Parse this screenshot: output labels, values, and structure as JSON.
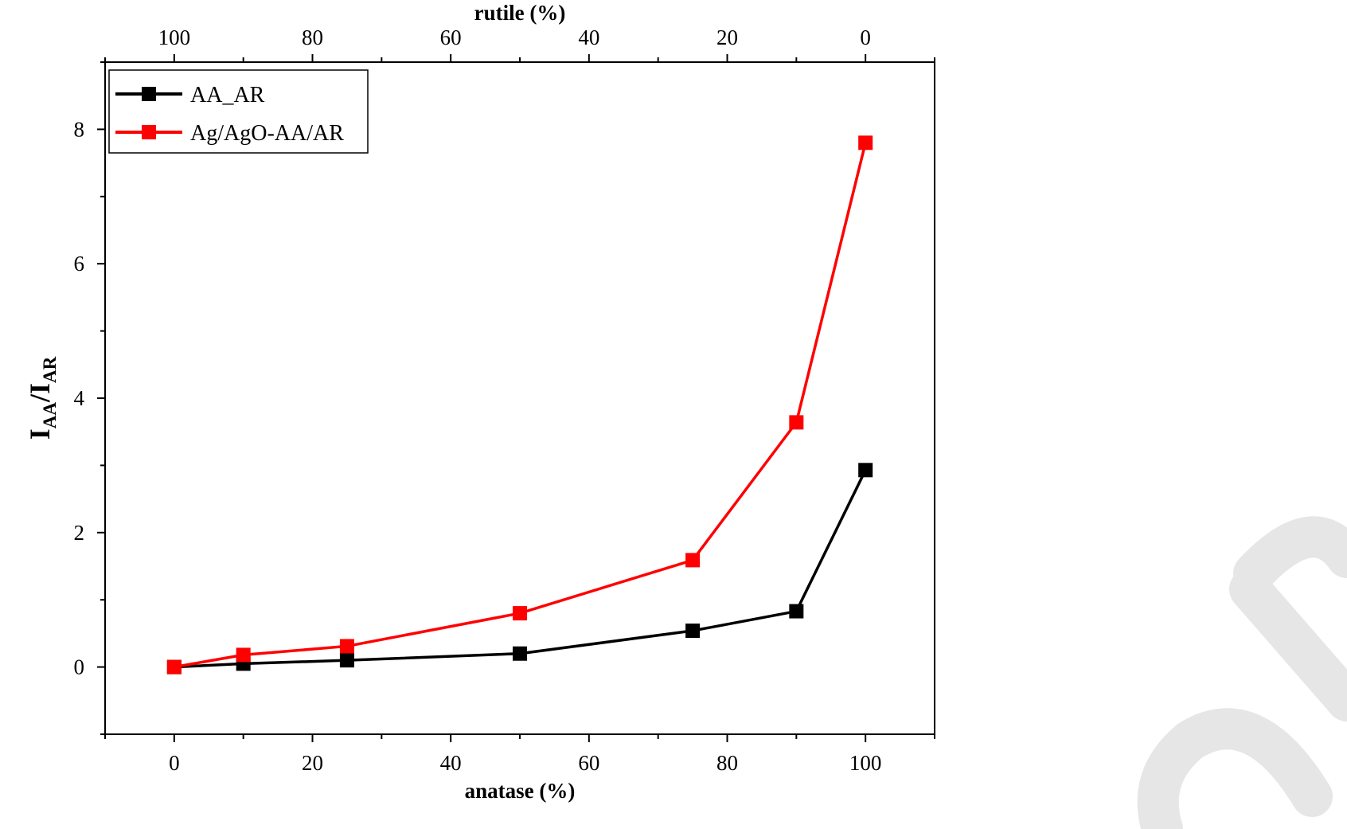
{
  "chart_data": {
    "type": "line",
    "bottom_axis": {
      "label": "anatase (%)",
      "range": [
        -10,
        110
      ],
      "ticks": [
        0,
        20,
        40,
        60,
        80,
        100
      ]
    },
    "top_axis": {
      "label": "rutile  (%)",
      "ticks": [
        100,
        80,
        60,
        40,
        20,
        0
      ]
    },
    "y_axis": {
      "label_main": "I",
      "label_sub1": "AA",
      "label_sep": "/I",
      "label_sub2": "AR",
      "range": [
        -1,
        9
      ],
      "ticks": [
        0,
        2,
        4,
        6,
        8
      ]
    },
    "grid": false,
    "legend_position": "top-left",
    "series": [
      {
        "name": "AA_AR",
        "color": "#000000",
        "marker": "square",
        "x": [
          0,
          10,
          25,
          50,
          75,
          90,
          100
        ],
        "y": [
          0.0,
          0.05,
          0.1,
          0.2,
          0.54,
          0.83,
          2.93
        ]
      },
      {
        "name": "Ag/AgO-AA/AR",
        "color": "#ff0000",
        "marker": "square",
        "x": [
          0,
          10,
          25,
          50,
          75,
          90,
          100
        ],
        "y": [
          0.0,
          0.18,
          0.31,
          0.8,
          1.59,
          3.64,
          7.8
        ]
      }
    ]
  }
}
